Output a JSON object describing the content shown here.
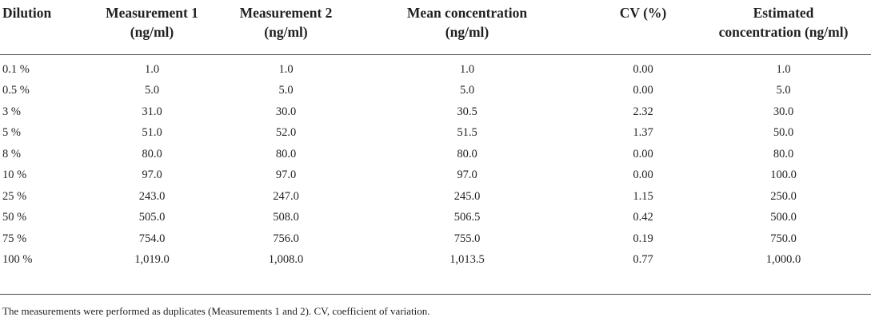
{
  "table": {
    "headers": [
      "Dilution",
      "Measurement 1\n(ng/ml)",
      "Measurement 2\n(ng/ml)",
      "Mean concentration\n(ng/ml)",
      "CV (%)",
      "Estimated\nconcentration (ng/ml)"
    ],
    "rows": [
      [
        "0.1 %",
        "1.0",
        "1.0",
        "1.0",
        "0.00",
        "1.0"
      ],
      [
        "0.5 %",
        "5.0",
        "5.0",
        "5.0",
        "0.00",
        "5.0"
      ],
      [
        "3 %",
        "31.0",
        "30.0",
        "30.5",
        "2.32",
        "30.0"
      ],
      [
        "5 %",
        "51.0",
        "52.0",
        "51.5",
        "1.37",
        "50.0"
      ],
      [
        "8 %",
        "80.0",
        "80.0",
        "80.0",
        "0.00",
        "80.0"
      ],
      [
        "10 %",
        "97.0",
        "97.0",
        "97.0",
        "0.00",
        "100.0"
      ],
      [
        "25 %",
        "243.0",
        "247.0",
        "245.0",
        "1.15",
        "250.0"
      ],
      [
        "50 %",
        "505.0",
        "508.0",
        "506.5",
        "0.42",
        "500.0"
      ],
      [
        "75 %",
        "754.0",
        "756.0",
        "755.0",
        "0.19",
        "750.0"
      ],
      [
        "100 %",
        "1,019.0",
        "1,008.0",
        "1,013.5",
        "0.77",
        "1,000.0"
      ]
    ]
  },
  "footnote": "The measurements were performed as duplicates (Measurements 1 and 2). CV, coefficient of variation."
}
